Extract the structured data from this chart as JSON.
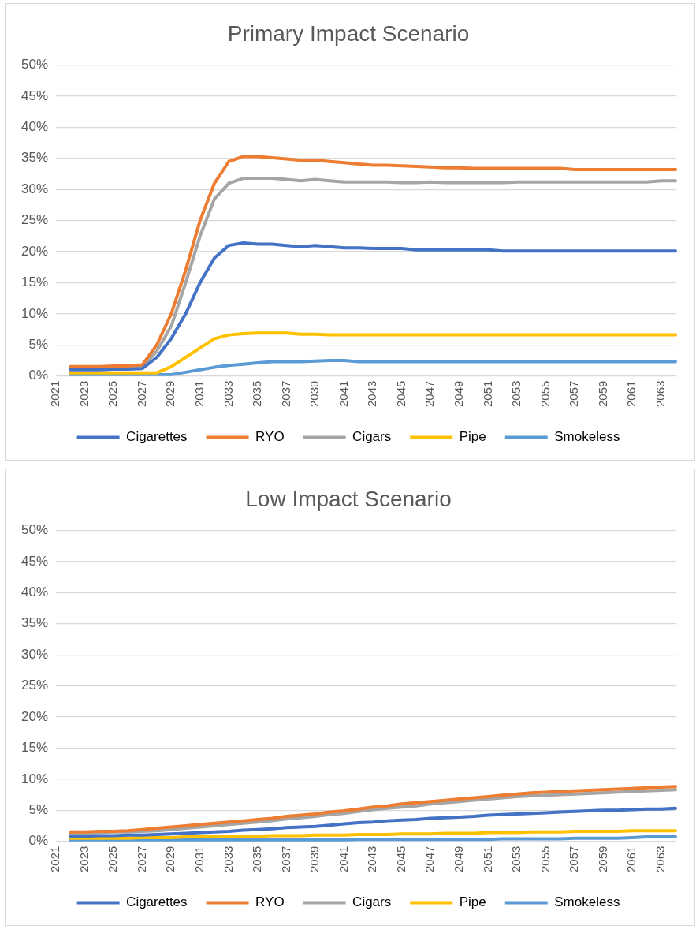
{
  "chart_data": [
    {
      "type": "line",
      "title": "Primary Impact Scenario",
      "categories": [
        "2021",
        null,
        "2023",
        null,
        "2025",
        null,
        "2027",
        null,
        "2029",
        null,
        "2031",
        null,
        "2033",
        null,
        "2035",
        null,
        "2037",
        null,
        "2039",
        null,
        "2041",
        null,
        "2043",
        null,
        "2045",
        null,
        "2047",
        null,
        "2049",
        null,
        "2051",
        null,
        "2053",
        null,
        "2055",
        null,
        "2057",
        null,
        "2059",
        null,
        "2061",
        null,
        "2063",
        null
      ],
      "series": [
        {
          "name": "Cigarettes",
          "color": "#4472c4",
          "values": [
            null,
            1.0,
            1.0,
            1.0,
            1.1,
            1.1,
            1.2,
            3.0,
            6.0,
            10.0,
            15.0,
            19.0,
            21.0,
            21.4,
            21.2,
            21.2,
            21.0,
            20.8,
            21.0,
            20.8,
            20.6,
            20.6,
            20.5,
            20.5,
            20.5,
            20.3,
            20.3,
            20.3,
            20.3,
            20.3,
            20.3,
            20.1,
            20.1,
            20.1,
            20.1,
            20.1,
            20.1,
            20.1,
            20.1,
            20.1,
            20.1,
            20.1,
            20.1,
            20.1
          ]
        },
        {
          "name": "RYO",
          "color": "#ed7d31",
          "values": [
            null,
            1.5,
            1.5,
            1.5,
            1.6,
            1.6,
            1.8,
            5,
            10,
            17,
            25,
            31,
            34.5,
            35.3,
            35.3,
            35.1,
            34.9,
            34.7,
            34.7,
            34.5,
            34.3,
            34.1,
            33.9,
            33.9,
            33.8,
            33.7,
            33.6,
            33.5,
            33.5,
            33.4,
            33.4,
            33.4,
            33.4,
            33.4,
            33.4,
            33.4,
            33.2,
            33.2,
            33.2,
            33.2,
            33.2,
            33.2,
            33.2,
            33.2
          ]
        },
        {
          "name": "Cigars",
          "color": "#a5a5a5",
          "values": [
            null,
            1.2,
            1.2,
            1.3,
            1.4,
            1.4,
            1.5,
            4,
            8,
            15,
            22.5,
            28.5,
            31,
            31.8,
            31.8,
            31.8,
            31.6,
            31.4,
            31.6,
            31.4,
            31.2,
            31.2,
            31.2,
            31.2,
            31.1,
            31.1,
            31.2,
            31.1,
            31.1,
            31.1,
            31.1,
            31.1,
            31.2,
            31.2,
            31.2,
            31.2,
            31.2,
            31.2,
            31.2,
            31.2,
            31.2,
            31.2,
            31.4,
            31.4
          ]
        },
        {
          "name": "Pipe",
          "color": "#ffc000",
          "values": [
            null,
            0.5,
            0.5,
            0.5,
            0.5,
            0.5,
            0.5,
            0.5,
            1.5,
            3,
            4.5,
            6,
            6.6,
            6.8,
            6.9,
            6.9,
            6.9,
            6.7,
            6.7,
            6.6,
            6.6,
            6.6,
            6.6,
            6.6,
            6.6,
            6.6,
            6.6,
            6.6,
            6.6,
            6.6,
            6.6,
            6.6,
            6.6,
            6.6,
            6.6,
            6.6,
            6.6,
            6.6,
            6.6,
            6.6,
            6.6,
            6.6,
            6.6,
            6.6
          ]
        },
        {
          "name": "Smokeless",
          "color": "#5b9bd5",
          "values": [
            null,
            0.2,
            0.2,
            0.2,
            0.2,
            0.2,
            0.2,
            0.2,
            0.2,
            0.6,
            1,
            1.4,
            1.7,
            1.9,
            2.1,
            2.3,
            2.3,
            2.3,
            2.4,
            2.5,
            2.5,
            2.3,
            2.3,
            2.3,
            2.3,
            2.3,
            2.3,
            2.3,
            2.3,
            2.3,
            2.3,
            2.3,
            2.3,
            2.3,
            2.3,
            2.3,
            2.3,
            2.3,
            2.3,
            2.3,
            2.3,
            2.3,
            2.3,
            2.3
          ]
        }
      ],
      "ylim": [
        0,
        50
      ],
      "yticks": [
        {
          "value": 0,
          "label": "0%"
        },
        {
          "value": 5,
          "label": "5%"
        },
        {
          "value": 10,
          "label": "10%"
        },
        {
          "value": 15,
          "label": "15%"
        },
        {
          "value": 20,
          "label": "20%"
        },
        {
          "value": 25,
          "label": "25%"
        },
        {
          "value": 30,
          "label": "30%"
        },
        {
          "value": 35,
          "label": "35%"
        },
        {
          "value": 40,
          "label": "40%"
        },
        {
          "value": 45,
          "label": "45%"
        },
        {
          "value": 50,
          "label": "50%"
        }
      ],
      "grid": "y",
      "legend": "bottom",
      "marker": "none",
      "line_style": "solid"
    },
    {
      "type": "line",
      "title": "Low Impact Scenario",
      "categories": [
        "2021",
        null,
        "2023",
        null,
        "2025",
        null,
        "2027",
        null,
        "2029",
        null,
        "2031",
        null,
        "2033",
        null,
        "2035",
        null,
        "2037",
        null,
        "2039",
        null,
        "2041",
        null,
        "2043",
        null,
        "2045",
        null,
        "2047",
        null,
        "2049",
        null,
        "2051",
        null,
        "2053",
        null,
        "2055",
        null,
        "2057",
        null,
        "2059",
        null,
        "2061",
        null,
        "2063",
        null
      ],
      "series": [
        {
          "name": "Cigarettes",
          "color": "#4472c4",
          "values": [
            null,
            0.8,
            0.8,
            0.9,
            0.9,
            1.0,
            1.0,
            1.1,
            1.2,
            1.3,
            1.4,
            1.5,
            1.6,
            1.8,
            1.9,
            2.0,
            2.2,
            2.3,
            2.4,
            2.6,
            2.8,
            3.0,
            3.1,
            3.3,
            3.4,
            3.5,
            3.7,
            3.8,
            3.9,
            4.0,
            4.2,
            4.3,
            4.4,
            4.5,
            4.6,
            4.7,
            4.8,
            4.9,
            5.0,
            5.0,
            5.1,
            5.2,
            5.2,
            5.3
          ]
        },
        {
          "name": "RYO",
          "color": "#ed7d31",
          "values": [
            null,
            1.5,
            1.5,
            1.6,
            1.6,
            1.7,
            1.9,
            2.1,
            2.3,
            2.5,
            2.7,
            2.9,
            3.1,
            3.3,
            3.5,
            3.7,
            4.0,
            4.2,
            4.4,
            4.7,
            4.9,
            5.2,
            5.5,
            5.7,
            6.0,
            6.2,
            6.4,
            6.6,
            6.8,
            7.0,
            7.2,
            7.4,
            7.6,
            7.8,
            7.9,
            8.0,
            8.1,
            8.2,
            8.3,
            8.4,
            8.5,
            8.6,
            8.7,
            8.8
          ]
        },
        {
          "name": "Cigars",
          "color": "#a5a5a5",
          "values": [
            null,
            1.2,
            1.3,
            1.4,
            1.5,
            1.5,
            1.6,
            1.7,
            1.9,
            2.1,
            2.3,
            2.5,
            2.7,
            2.9,
            3.1,
            3.3,
            3.6,
            3.8,
            4.0,
            4.3,
            4.5,
            4.8,
            5.1,
            5.3,
            5.5,
            5.7,
            6.0,
            6.2,
            6.4,
            6.6,
            6.8,
            7.0,
            7.2,
            7.3,
            7.4,
            7.5,
            7.6,
            7.7,
            7.8,
            7.9,
            8.0,
            8.1,
            8.2,
            8.3
          ]
        },
        {
          "name": "Pipe",
          "color": "#ffc000",
          "values": [
            null,
            0.5,
            0.5,
            0.5,
            0.5,
            0.5,
            0.6,
            0.6,
            0.6,
            0.7,
            0.7,
            0.7,
            0.8,
            0.8,
            0.8,
            0.9,
            0.9,
            0.9,
            1.0,
            1.0,
            1.0,
            1.1,
            1.1,
            1.1,
            1.2,
            1.2,
            1.2,
            1.3,
            1.3,
            1.3,
            1.4,
            1.4,
            1.4,
            1.5,
            1.5,
            1.5,
            1.6,
            1.6,
            1.6,
            1.6,
            1.7,
            1.7,
            1.7,
            1.7
          ]
        },
        {
          "name": "Smokeless",
          "color": "#5b9bd5",
          "values": [
            null,
            0.2,
            0.2,
            0.2,
            0.2,
            0.2,
            0.2,
            0.2,
            0.2,
            0.2,
            0.2,
            0.2,
            0.2,
            0.2,
            0.2,
            0.2,
            0.2,
            0.2,
            0.2,
            0.2,
            0.2,
            0.3,
            0.3,
            0.3,
            0.3,
            0.3,
            0.3,
            0.3,
            0.3,
            0.3,
            0.3,
            0.4,
            0.4,
            0.4,
            0.4,
            0.4,
            0.5,
            0.5,
            0.5,
            0.5,
            0.6,
            0.7,
            0.7,
            0.7
          ]
        }
      ],
      "ylim": [
        0,
        50
      ],
      "yticks": [
        {
          "value": 0,
          "label": "0%"
        },
        {
          "value": 5,
          "label": "5%"
        },
        {
          "value": 10,
          "label": "10%"
        },
        {
          "value": 15,
          "label": "15%"
        },
        {
          "value": 20,
          "label": "20%"
        },
        {
          "value": 25,
          "label": "25%"
        },
        {
          "value": 30,
          "label": "30%"
        },
        {
          "value": 35,
          "label": "35%"
        },
        {
          "value": 40,
          "label": "40%"
        },
        {
          "value": 45,
          "label": "45%"
        },
        {
          "value": 50,
          "label": "50%"
        }
      ],
      "grid": "y",
      "legend": "bottom",
      "marker": "none",
      "line_style": "solid"
    }
  ]
}
